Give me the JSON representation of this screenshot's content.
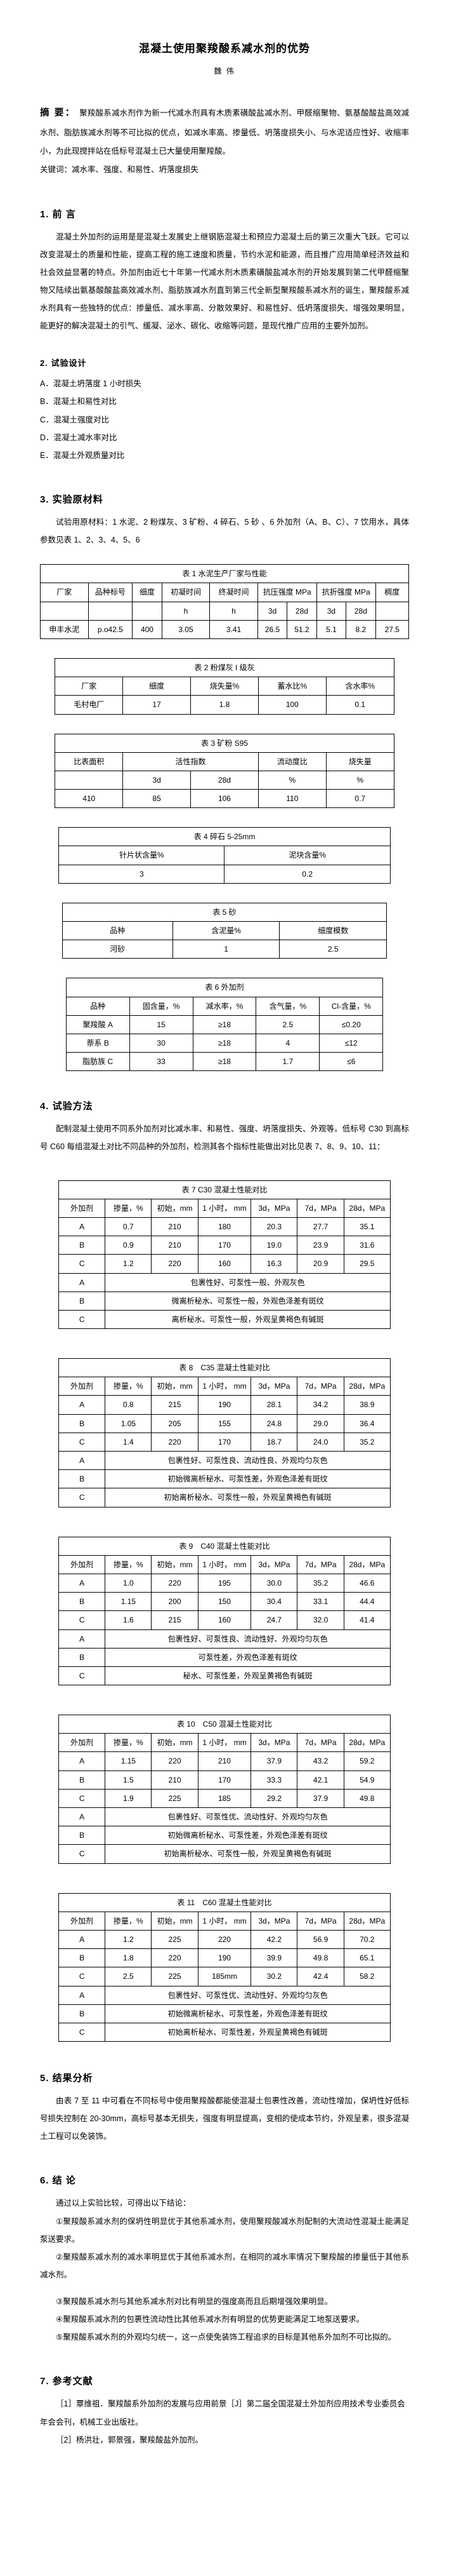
{
  "doc": {
    "title": "混凝土使用聚羧酸系减水剂的优势",
    "author": "魏 伟"
  },
  "abstract": {
    "label": "摘 要：",
    "text": "聚羧酸系减水剂作为新一代减水剂具有木质素磺酸盐减水剂、甲醛缩聚物、氨基酸酸盐高效减水剂、脂肪族减水剂等不可比拟的优点，如减水率高、掺量低、坍落度损失小、与水泥适应性好、收缩率小，为此现搅拌站在低标号混凝土已大量使用聚羧酸。",
    "keywords": "关键词：减水率、强度、和易性、坍落度损失"
  },
  "sections": {
    "s1": {
      "heading": "1. 前 言",
      "body": "混凝土外加剂的运用是是混凝土发展史上继钢筋混凝土和预应力混凝土后的第三次重大飞跃。它可以改变混凝土的质量和性能，提高工程的施工速度和质量，节约水泥和能源，而且推广应用简单经济效益和社会效益显著的特点。外加剂由近七十年第一代减水剂木质素磺酸盐减水剂的开始发展到第二代甲醛缩聚物又陆续出氨基酸酸盐高效减水剂、脂肪族减水剂直到第三代全新型聚羧酸系减水剂的诞生，聚羧酸系减水剂具有一些独特的优点：掺量低、减水率高、分散效果好、和易性好、低坍落度损失、增强效果明显，能更好的解决混凝土的引气、缓凝、泌水、碳化、收缩等问题，是现代推广应用的主要外加剂。"
    },
    "s2": {
      "heading": "2. 试验设计",
      "items": [
        "A．混凝土坍落度 1 小时损失",
        "B．混凝土和易性对比",
        "C．混凝土强度对比",
        "D．混凝土减水率对比",
        "E．混凝土外观质量对比"
      ]
    },
    "s3": {
      "heading": "3. 实验原材料",
      "body": "试验用原材料：1 水泥、2 粉煤灰、3 矿粉、4 碎石、5 砂 、6 外加剂（A、B、C）、7 饮用水，具体参数见表 1、2、3、4、5、6"
    },
    "s4": {
      "heading": "4. 试验方法",
      "body": "配制混凝土使用不同系外加剂对比减水率、和易性、强度、坍落度损失、外观等。低标号 C30 到高标号 C60 每组混凝土对比不同品种的外加剂，检测其各个指标性能做出对比见表 7、8、9、10、11："
    },
    "s5": {
      "heading": "5. 结果分析",
      "body": "由表 7 至 11 中可看在不同标号中使用聚羧酸都能使混凝土包裹性改善，流动性增加，保坍性好低标号损失控制在 20-30mm，高标号基本无损失，强度有明显提高，变相的使成本节约，外观呈素，很多混凝土工程可以免装饰。"
    },
    "s6": {
      "heading": "6. 结  论",
      "intro": "通过以上实验比较，可得出以下结论：",
      "items": [
        "①聚羧酸系减水剂的保坍性明显优于其他系减水剂，使用聚羧酸减水剂配制的大流动性混凝土能满足泵送要求。",
        "②聚羧酸系减水剂的减水率明显优于其他系减水剂，在相同的减水率情况下聚羧酸的掺量低于其他系减水剂。",
        "③聚羧酸系减水剂与其他系减水剂对比有明显的强度高而且后期增强效果明显。",
        "④聚羧酸系减水剂的包裹性流动性比其他系减水剂有明显的优势更能满足工地泵送要求。",
        "⑤聚羧酸系减水剂的外观均匀统一，这一点使免装饰工程追求的目标是其他系外加剂不可比拟的。"
      ]
    },
    "s7": {
      "heading": "7. 参考文献",
      "refs": [
        "［1］覃维祖．聚羧酸系外加剂的发展与应用前景［J］第二届全国混凝土外加剂应用技术专业委员会年会会刊，机械工业出版社。",
        "［2］杨洪壮，郭景强，聚羧酸盐外加剂。"
      ]
    }
  },
  "tables": {
    "t1": {
      "title": "表 1 水泥生产厂家与性能",
      "widths": [
        13,
        12,
        8,
        13,
        13,
        8,
        8,
        8,
        8,
        9
      ],
      "rows": [
        [
          "厂家",
          "品种标号",
          "细度",
          "初凝时间",
          "终凝时间",
          {
            "t": "抗压强度 MPa",
            "cs": 2
          },
          {
            "t": "抗折强度 MPa",
            "cs": 2
          },
          "稠度"
        ],
        [
          "",
          "",
          "",
          "h",
          "h",
          "3d",
          "28d",
          "3d",
          "28d",
          ""
        ],
        [
          "申丰水泥",
          "p.o42.5",
          "400",
          "3.05",
          "3.41",
          "26.5",
          "51.2",
          "5.1",
          "8.2",
          "27.5"
        ]
      ]
    },
    "t2": {
      "title": "表 2 粉煤灰 I 级灰",
      "widths": [
        20,
        20,
        20,
        20,
        20
      ],
      "rows": [
        [
          "厂家",
          "细度",
          "烧失量%",
          "蓄水比%",
          "含水率%"
        ],
        [
          "毛村电厂",
          "17",
          "1.8",
          "100",
          "0.1"
        ]
      ]
    },
    "t3": {
      "title": "表 3 矿粉 S95",
      "widths": [
        20,
        20,
        20,
        20,
        20
      ],
      "rows": [
        [
          "比表面积",
          {
            "t": "活性指数",
            "cs": 2
          },
          "流动度比",
          "烧失量"
        ],
        [
          "",
          "3d",
          "28d",
          "%",
          "%"
        ],
        [
          "410",
          "85",
          "106",
          "110",
          "0.7"
        ]
      ]
    },
    "t4": {
      "title": "表 4 碎石  5-25mm",
      "widths": [
        50,
        50
      ],
      "rows": [
        [
          "针片状含量%",
          "泥块含量%"
        ],
        [
          "3",
          "0.2"
        ]
      ]
    },
    "t5": {
      "title": "表 5 砂",
      "widths": [
        34,
        33,
        33
      ],
      "rows": [
        [
          "品种",
          "含泥量%",
          "细度模数"
        ],
        [
          "河砂",
          "1",
          "2.5"
        ]
      ]
    },
    "t6": {
      "title": "表 6 外加剂",
      "widths": [
        20,
        20,
        20,
        20,
        20
      ],
      "rows": [
        [
          "品种",
          "固含量，%",
          "减水率，%",
          "含气量，%",
          "Cl-含量，%"
        ],
        [
          "聚羧酸 A",
          "15",
          "≥18",
          "2.5",
          "≤0.20"
        ],
        [
          "萘系 B",
          "30",
          "≥18",
          "4",
          "≤12"
        ],
        [
          "脂肪族 C",
          "33",
          "≥18",
          "1.7",
          "≤6"
        ]
      ]
    },
    "t7": {
      "title": "表 7 C30 混凝土性能对比",
      "widths": [
        14,
        14,
        14,
        16,
        14,
        14,
        14
      ],
      "rows": [
        [
          "外加剂",
          "掺量，%",
          "初始，mm",
          "1 小时， mm",
          "3d，MPa",
          "7d，MPa",
          "28d，MPa"
        ],
        [
          "A",
          "0.7",
          "210",
          "180",
          "20.3",
          "27.7",
          "35.1"
        ],
        [
          "B",
          "0.9",
          "210",
          "170",
          "19.0",
          "23.9",
          "31.6"
        ],
        [
          "C",
          "1.2",
          "220",
          "160",
          "16.3",
          "20.9",
          "29.5"
        ],
        [
          "A",
          {
            "t": "包裹性好、可泵性一般、外观灰色",
            "cs": 6
          }
        ],
        [
          "B",
          {
            "t": "微离析秘水、可泵性一般，外观色泽差有斑纹",
            "cs": 6
          }
        ],
        [
          "C",
          {
            "t": "离析秘水、可泵性一般，外观呈黄褐色有碱斑",
            "cs": 6
          }
        ]
      ]
    },
    "t8": {
      "title": "表 8　C35 混凝土性能对比",
      "widths": [
        14,
        14,
        14,
        16,
        14,
        14,
        14
      ],
      "rows": [
        [
          "外加剂",
          "掺量，%",
          "初始，mm",
          "1 小时， mm",
          "3d，MPa",
          "7d，MPa",
          "28d，MPa"
        ],
        [
          "A",
          "0.8",
          "215",
          "190",
          "28.1",
          "34.2",
          "38.9"
        ],
        [
          "B",
          "1.05",
          "205",
          "155",
          "24.8",
          "29.0",
          "36.4"
        ],
        [
          "C",
          "1.4",
          "220",
          "170",
          "18.7",
          "24.0",
          "35.2"
        ],
        [
          "A",
          {
            "t": "包裹性好、可泵性良、流动性良、外观均匀灰色",
            "cs": 6
          }
        ],
        [
          "B",
          {
            "t": "初始微离析秘水、可泵性差，外观色泽差有斑纹",
            "cs": 6
          }
        ],
        [
          "C",
          {
            "t": "初始离析秘水、可泵性一般，外观呈黄褐色有碱斑",
            "cs": 6
          }
        ]
      ]
    },
    "t9": {
      "title": "表 9　C40 混凝土性能对比",
      "widths": [
        14,
        14,
        14,
        16,
        14,
        14,
        14
      ],
      "rows": [
        [
          "外加剂",
          "掺量，%",
          "初始，mm",
          "1 小时， mm",
          "3d，MPa",
          "7d，MPa",
          "28d，MPa"
        ],
        [
          "A",
          "1.0",
          "220",
          "195",
          "30.0",
          "35.2",
          "46.6"
        ],
        [
          "B",
          "1.15",
          "200",
          "150",
          "30.4",
          "33.1",
          "44.4"
        ],
        [
          "C",
          "1.6",
          "215",
          "160",
          "24.7",
          "32.0",
          "41.4"
        ],
        [
          "A",
          {
            "t": "包裹性好、可泵性良、流动性好、外观均匀灰色",
            "cs": 6
          }
        ],
        [
          "B",
          {
            "t": "可泵性差，外观色泽差有斑纹",
            "cs": 6
          }
        ],
        [
          "C",
          {
            "t": "秘水、可泵性差，外观呈黄褐色有碱斑",
            "cs": 6
          }
        ]
      ]
    },
    "t10": {
      "title": "表 10　C50 混凝土性能对比",
      "widths": [
        14,
        14,
        14,
        16,
        14,
        14,
        14
      ],
      "rows": [
        [
          "外加剂",
          "掺量，%",
          "初始，mm",
          "1 小时， mm",
          "3d，MPa",
          "7d，MPa",
          "28d，MPa"
        ],
        [
          "A",
          "1.15",
          "220",
          "210",
          "37.9",
          "43.2",
          "59.2"
        ],
        [
          "B",
          "1.5",
          "210",
          "170",
          "33.3",
          "42.1",
          "54.9"
        ],
        [
          "C",
          "1.9",
          "225",
          "185",
          "29.2",
          "37.9",
          "49.8"
        ],
        [
          "A",
          {
            "t": "包裹性好、可泵性优、流动性好、外观均匀灰色",
            "cs": 6
          }
        ],
        [
          "B",
          {
            "t": "初始微离析秘水、可泵性差，外观色泽差有斑纹",
            "cs": 6
          }
        ],
        [
          "C",
          {
            "t": "初始离析秘水、可泵性一般，外观呈黄褐色有碱斑",
            "cs": 6
          }
        ]
      ]
    },
    "t11": {
      "title": "表 11　C60 混凝土性能对比",
      "widths": [
        14,
        14,
        14,
        16,
        14,
        14,
        14
      ],
      "rows": [
        [
          "外加剂",
          "掺量，%",
          "初始，mm",
          "1 小时， mm",
          "3d，MPa",
          "7d，MPa",
          "28d，MPa"
        ],
        [
          "A",
          "1.2",
          "225",
          "220",
          "42.2",
          "56.9",
          "70.2"
        ],
        [
          "B",
          "1.8",
          "220",
          "190",
          "39.9",
          "49.8",
          "65.1"
        ],
        [
          "C",
          "2.5",
          "225",
          "185mm",
          "30.2",
          "42.4",
          "58.2"
        ],
        [
          "A",
          {
            "t": "包裹性好、可泵性优、流动性好、外观均匀灰色",
            "cs": 6
          }
        ],
        [
          "B",
          {
            "t": "初始微离析秘水、可泵性差，外观色泽差有斑纹",
            "cs": 6
          }
        ],
        [
          "C",
          {
            "t": "初始离析秘水、可泵性差，外观呈黄褐色有碱斑",
            "cs": 6
          }
        ]
      ]
    }
  }
}
